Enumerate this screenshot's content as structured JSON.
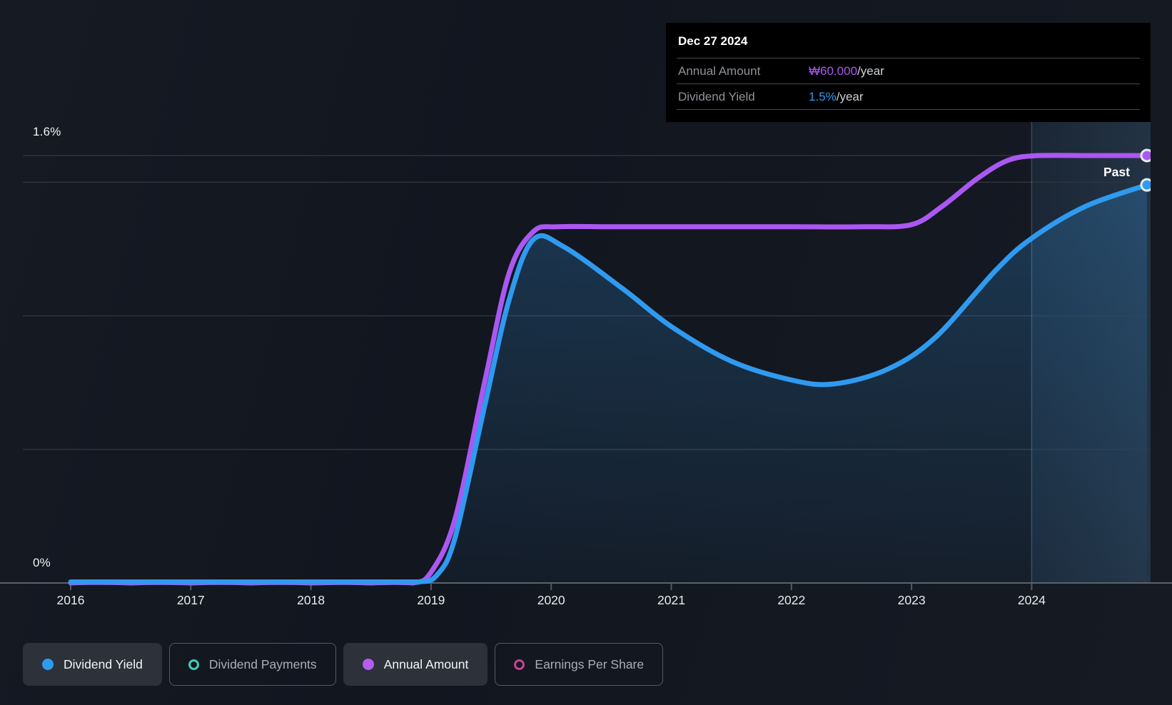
{
  "past_label": "Past",
  "tooltip": {
    "date": "Dec 27 2024",
    "rows": [
      {
        "label": "Annual Amount",
        "value": "₩60.000",
        "suffix": "/year",
        "color": "#ab57f2"
      },
      {
        "label": "Dividend Yield",
        "value": "1.5%",
        "suffix": "/year",
        "color": "#2f9aef"
      }
    ]
  },
  "legend": {
    "items": [
      {
        "label": "Dividend Yield",
        "color": "#2d9cf0",
        "style": "filled",
        "active": true
      },
      {
        "label": "Dividend Payments",
        "color": "#3ecfb8",
        "style": "outline",
        "active": false
      },
      {
        "label": "Annual Amount",
        "color": "#b75cf2",
        "style": "filled",
        "active": true
      },
      {
        "label": "Earnings Per Share",
        "color": "#c74490",
        "style": "outline",
        "active": false
      }
    ]
  },
  "chart_data": {
    "type": "area",
    "x_axis": {
      "ticks": [
        2016,
        2017,
        2018,
        2019,
        2020,
        2021,
        2022,
        2023,
        2024
      ],
      "range": [
        2016,
        2024.96
      ]
    },
    "y_axis": {
      "max_label": "1.6%",
      "min_label": "0%",
      "unit": "%",
      "range": [
        0,
        1.6
      ],
      "gridlines_pct": [
        1.6,
        1.5,
        1.0,
        0.5
      ]
    },
    "amount_axis": {
      "unit": "KRW",
      "range": [
        0,
        60000
      ]
    },
    "past_region_start": 2024,
    "series": [
      {
        "name": "Dividend Yield",
        "unit": "%",
        "color": "#2f9aef",
        "fill": true,
        "points": [
          [
            2016.0,
            0.004
          ],
          [
            2016.5,
            0.004
          ],
          [
            2017.0,
            0.004
          ],
          [
            2017.5,
            0.004
          ],
          [
            2018.0,
            0.004
          ],
          [
            2018.5,
            0.004
          ],
          [
            2018.9,
            0.004
          ],
          [
            2019.05,
            0.03
          ],
          [
            2019.2,
            0.17
          ],
          [
            2019.45,
            0.67
          ],
          [
            2019.65,
            1.06
          ],
          [
            2019.85,
            1.285
          ],
          [
            2020.1,
            1.26
          ],
          [
            2020.6,
            1.1
          ],
          [
            2021.0,
            0.96
          ],
          [
            2021.5,
            0.83
          ],
          [
            2022.0,
            0.76
          ],
          [
            2022.35,
            0.745
          ],
          [
            2022.8,
            0.8
          ],
          [
            2023.2,
            0.92
          ],
          [
            2023.7,
            1.17
          ],
          [
            2024.0,
            1.29
          ],
          [
            2024.45,
            1.41
          ],
          [
            2024.96,
            1.49
          ]
        ]
      },
      {
        "name": "Annual Amount",
        "unit": "KRW",
        "color": "#ab57f2",
        "fill": false,
        "points": [
          [
            2016.0,
            0
          ],
          [
            2016.5,
            0
          ],
          [
            2017.0,
            0
          ],
          [
            2017.5,
            0
          ],
          [
            2018.0,
            0
          ],
          [
            2018.5,
            0
          ],
          [
            2018.85,
            0
          ],
          [
            2019.0,
            1500
          ],
          [
            2019.2,
            9000
          ],
          [
            2019.45,
            28500
          ],
          [
            2019.65,
            43500
          ],
          [
            2019.85,
            49300
          ],
          [
            2020.05,
            50000
          ],
          [
            2020.5,
            50000
          ],
          [
            2021.0,
            50000
          ],
          [
            2021.5,
            50000
          ],
          [
            2022.0,
            50000
          ],
          [
            2022.6,
            50000
          ],
          [
            2023.0,
            50300
          ],
          [
            2023.25,
            52800
          ],
          [
            2023.55,
            56800
          ],
          [
            2023.8,
            59300
          ],
          [
            2024.05,
            60000
          ],
          [
            2024.5,
            60000
          ],
          [
            2024.96,
            60000
          ]
        ]
      }
    ]
  }
}
